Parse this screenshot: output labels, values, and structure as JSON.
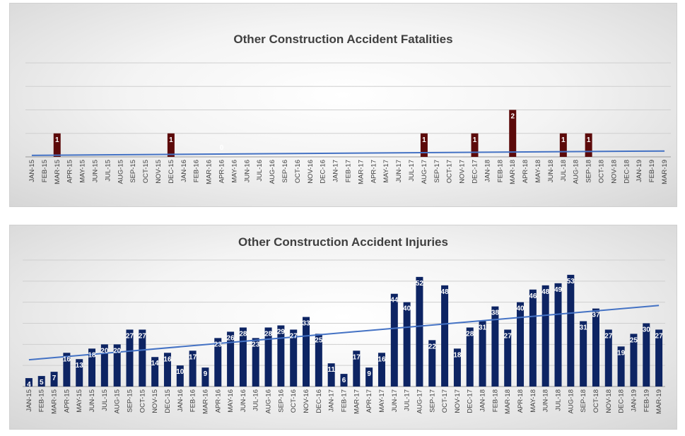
{
  "chart_data": [
    {
      "type": "bar",
      "title": "Other Construction Accident Fatalities",
      "trendline": true,
      "bar_color": "#5c0a0a",
      "trend_color": "#4472c4",
      "grid": true,
      "ylim": [
        0,
        4
      ],
      "categories": [
        "JAN-15",
        "FEB-15",
        "MAR-15",
        "APR-15",
        "MAY-15",
        "JUN-15",
        "JUL-15",
        "AUG-15",
        "SEP-15",
        "OCT-15",
        "NOV-15",
        "DEC-15",
        "JAN-16",
        "FEB-16",
        "MAR-16",
        "APR-16",
        "MAY-16",
        "JUN-16",
        "JUL-16",
        "AUG-16",
        "SEP-16",
        "OCT-16",
        "NOV-16",
        "DEC-16",
        "JAN-17",
        "FEB-17",
        "MAR-17",
        "APR-17",
        "MAY-17",
        "JUN-17",
        "JUL-17",
        "AUG-17",
        "SEP-17",
        "OCT-17",
        "NOV-17",
        "DEC-17",
        "JAN-18",
        "FEB-18",
        "MAR-18",
        "APR-18",
        "MAY-18",
        "JUN-18",
        "JUL-18",
        "AUG-18",
        "SEP-18",
        "OCT-18",
        "NOV-18",
        "DEC-18",
        "JAN-19",
        "FEB-19",
        "MAR-19"
      ],
      "values": [
        0,
        0,
        1,
        0,
        0,
        0,
        0,
        0,
        0,
        0,
        0,
        1,
        0,
        0,
        0,
        0,
        0,
        0,
        0,
        0,
        0,
        0,
        0,
        0,
        0,
        0,
        0,
        0,
        0,
        0,
        0,
        1,
        0,
        0,
        0,
        1,
        0,
        0,
        2,
        0,
        0,
        0,
        1,
        0,
        1,
        0,
        0,
        0,
        0,
        0,
        0
      ],
      "data_labels": {
        "2": "1",
        "11": "1",
        "15": "0",
        "31": "1",
        "35": "1",
        "38": "2",
        "42": "1",
        "44": "1"
      }
    },
    {
      "type": "bar",
      "title": "Other Construction Accident Injuries",
      "trendline": true,
      "bar_color": "#0d2463",
      "trend_color": "#4472c4",
      "grid": true,
      "ylim": [
        0,
        60
      ],
      "categories": [
        "JAN-15",
        "FEB-15",
        "MAR-15",
        "APR-15",
        "MAY-15",
        "JUN-15",
        "JUL-15",
        "AUG-15",
        "SEP-15",
        "OCT-15",
        "NOV-15",
        "DEC-15",
        "JAN-16",
        "FEB-16",
        "MAR-16",
        "APR-16",
        "MAY-16",
        "JUN-16",
        "JUL-16",
        "AUG-16",
        "SEP-16",
        "OCT-16",
        "NOV-16",
        "DEC-16",
        "JAN-17",
        "FEB-17",
        "MAR-17",
        "APR-17",
        "MAY-17",
        "JUN-17",
        "JUL-17",
        "AUG-17",
        "SEP-17",
        "OCT-17",
        "NOV-17",
        "DEC-17",
        "JAN-18",
        "FEB-18",
        "MAR-18",
        "APR-18",
        "MAY-18",
        "JUN-18",
        "JUL-18",
        "AUG-18",
        "SEP-18",
        "OCT-18",
        "NOV-18",
        "DEC-18",
        "JAN-19",
        "FEB-19",
        "MAR-19"
      ],
      "values": [
        4,
        5,
        7,
        16,
        13,
        18,
        20,
        20,
        27,
        27,
        14,
        16,
        10,
        17,
        9,
        23,
        26,
        28,
        23,
        28,
        29,
        27,
        33,
        25,
        11,
        6,
        17,
        9,
        16,
        44,
        40,
        52,
        22,
        48,
        18,
        28,
        31,
        38,
        27,
        40,
        46,
        48,
        49,
        53,
        31,
        37,
        27,
        19,
        25,
        30,
        27
      ],
      "data_labels": {}
    }
  ]
}
